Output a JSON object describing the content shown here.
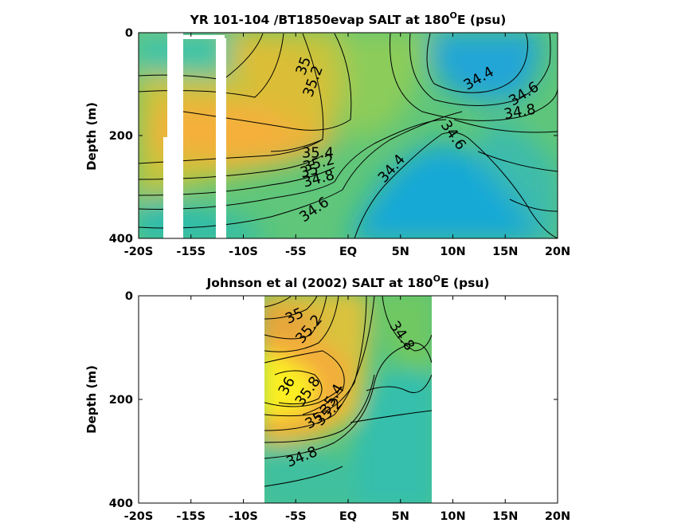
{
  "colors": {
    "fresh": "#1aa6dc",
    "mid": "#2fbfae",
    "green": "#6cc96a",
    "amber": "#f2b23c",
    "salty": "#f9f21e"
  },
  "chart_data": [
    {
      "type": "contour",
      "title_main": "YR 101-104 /BT1850evap SALT at 180",
      "title_sup": "O",
      "title_end": "E (psu)",
      "ylabel": "Depth (m)",
      "xlabel": "",
      "xlim": [
        -20,
        20
      ],
      "ylim": [
        400,
        0
      ],
      "xticks": [
        -20,
        -15,
        -10,
        -5,
        0,
        5,
        10,
        15,
        20
      ],
      "xticklabels": [
        "-20S",
        "-15S",
        "-10S",
        "-5S",
        "EQ",
        "5N",
        "10N",
        "15N",
        "20N"
      ],
      "yticks": [
        0,
        200,
        400
      ],
      "yticklabels": [
        "0",
        "200",
        "400"
      ],
      "gaps": [
        {
          "lat_min": -17.3,
          "lat_max": -16.0,
          "depth_min": 0,
          "depth_max": 400
        },
        {
          "lat_min": -17.8,
          "lat_max": -17.3,
          "depth_min": 205,
          "depth_max": 400
        },
        {
          "lat_min": -12.6,
          "lat_max": -11.6,
          "depth_min": 15,
          "depth_max": 400
        }
      ],
      "contour_levels": [
        "34.4",
        "34.6",
        "34.8",
        "35",
        "35.2",
        "35.4"
      ],
      "contour_labels": [
        {
          "text": "35",
          "lat": -4.2,
          "depth": 65,
          "angle": -70
        },
        {
          "text": "35.2",
          "lat": -3.3,
          "depth": 95,
          "angle": -70
        },
        {
          "text": "34.4",
          "lat": 12.5,
          "depth": 90,
          "angle": -30
        },
        {
          "text": "34.6",
          "lat": 16.8,
          "depth": 120,
          "angle": -32
        },
        {
          "text": "34.8",
          "lat": 16.4,
          "depth": 155,
          "angle": -10
        },
        {
          "text": "34.6",
          "lat": 10.0,
          "depth": 200,
          "angle": 55
        },
        {
          "text": "35.4",
          "lat": -2.9,
          "depth": 235,
          "angle": 0
        },
        {
          "text": "35.2",
          "lat": -2.8,
          "depth": 255,
          "angle": -15
        },
        {
          "text": "35",
          "lat": -3.7,
          "depth": 270,
          "angle": -15
        },
        {
          "text": "34.8",
          "lat": -2.8,
          "depth": 285,
          "angle": -15
        },
        {
          "text": "34.4",
          "lat": 4.2,
          "depth": 265,
          "angle": -48
        },
        {
          "text": "34.6",
          "lat": -3.2,
          "depth": 345,
          "angle": -35
        }
      ]
    },
    {
      "type": "contour",
      "title_main": "Johnson et al (2002) SALT at 180",
      "title_sup": "O",
      "title_end": "E (psu)",
      "ylabel": "Depth (m)",
      "xlabel": "",
      "xlim": [
        -20,
        20
      ],
      "ylim": [
        400,
        0
      ],
      "xticks": [
        -20,
        -15,
        -10,
        -5,
        0,
        5,
        10,
        15,
        20
      ],
      "xticklabels": [
        "-20S",
        "-15S",
        "-10S",
        "-5S",
        "EQ",
        "5N",
        "10N",
        "15N",
        "20N"
      ],
      "yticks": [
        0,
        200,
        400
      ],
      "yticklabels": [
        "0",
        "200",
        "400"
      ],
      "data_lat_range": [
        -8,
        8
      ],
      "contour_levels": [
        "34.8",
        "35",
        "35.2",
        "35.4",
        "35.6",
        "35.8",
        "36"
      ],
      "contour_labels": [
        {
          "text": "35",
          "lat": -5.1,
          "depth": 40,
          "angle": -25
        },
        {
          "text": "35.2",
          "lat": -3.7,
          "depth": 65,
          "angle": -50
        },
        {
          "text": "34.8",
          "lat": 5.1,
          "depth": 78,
          "angle": 55
        },
        {
          "text": "36",
          "lat": -5.8,
          "depth": 175,
          "angle": -60
        },
        {
          "text": "35.8",
          "lat": -3.8,
          "depth": 185,
          "angle": -55
        },
        {
          "text": "35.4",
          "lat": -1.5,
          "depth": 200,
          "angle": -60
        },
        {
          "text": "35.2",
          "lat": -1.8,
          "depth": 225,
          "angle": -45
        },
        {
          "text": "35",
          "lat": -3.2,
          "depth": 242,
          "angle": -30
        },
        {
          "text": "34.8",
          "lat": -4.4,
          "depth": 312,
          "angle": -22
        }
      ]
    }
  ]
}
